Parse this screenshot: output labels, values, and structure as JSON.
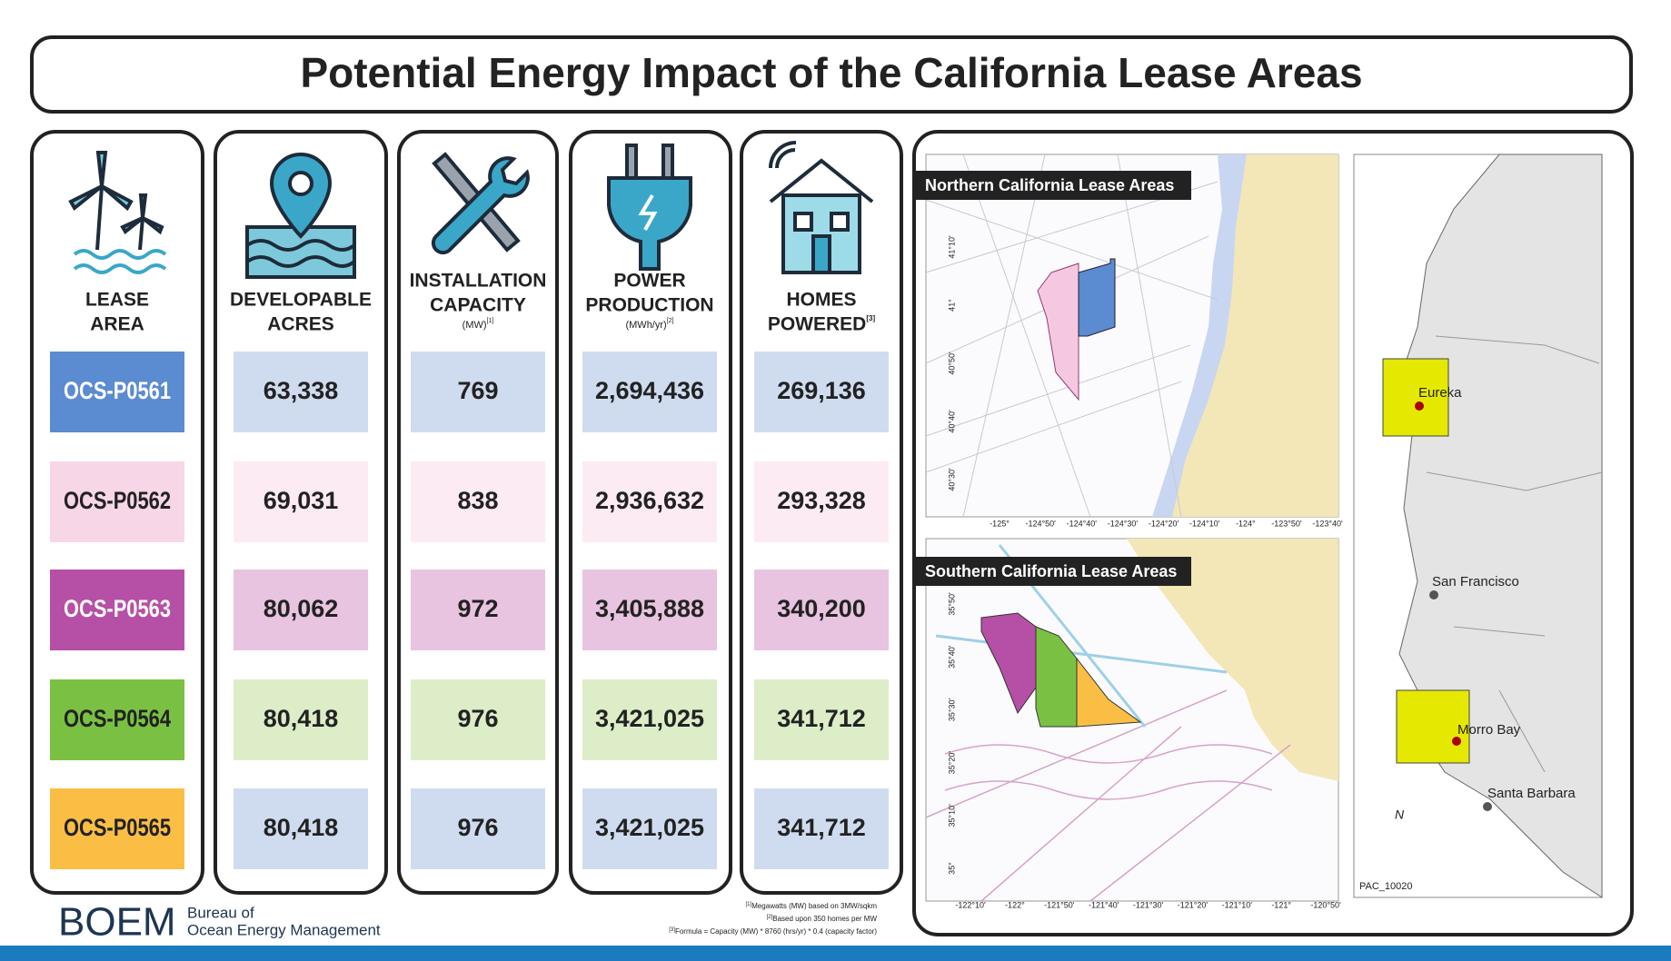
{
  "title": "Potential Energy Impact of the California Lease Areas",
  "table": {
    "headers": [
      {
        "lines": [
          "LEASE",
          "AREA"
        ]
      },
      {
        "lines": [
          "DEVELOPABLE",
          "ACRES"
        ]
      },
      {
        "lines": [
          "INSTALLATION",
          "CAPACITY"
        ],
        "unit": "(MW)",
        "note": "[1]"
      },
      {
        "lines": [
          "POWER",
          "PRODUCTION"
        ],
        "unit": "(MWh/yr)",
        "note": "[2]"
      },
      {
        "lines": [
          "HOMES",
          "POWERED"
        ],
        "note": "[3]"
      }
    ],
    "rows": [
      [
        "OCS-P0561",
        "63,338",
        "769",
        "2,694,436",
        "269,136"
      ],
      [
        "OCS-P0562",
        "69,031",
        "838",
        "2,936,632",
        "293,328"
      ],
      [
        "OCS-P0563",
        "80,062",
        "972",
        "3,405,888",
        "340,200"
      ],
      [
        "OCS-P0564",
        "80,418",
        "976",
        "3,421,025",
        "341,712"
      ],
      [
        "OCS-P0565",
        "80,418",
        "976",
        "3,421,025",
        "341,712"
      ]
    ],
    "row_colors": [
      {
        "lease": "#5b8bd0",
        "lease_text": "#ffffff",
        "cell": "#cfdcf0"
      },
      {
        "lease": "#f7d6e7",
        "lease_text": "#222222",
        "cell": "#fdebf4"
      },
      {
        "lease": "#b64fa6",
        "lease_text": "#ffffff",
        "cell": "#e8c4e1"
      },
      {
        "lease": "#7ac143",
        "lease_text": "#222222",
        "cell": "#dcedc8"
      },
      {
        "lease": "#fbbe45",
        "lease_text": "#222222",
        "cell": "#cfdcf0"
      }
    ]
  },
  "footnotes": [
    {
      "note": "[1]",
      "text": "Megawatts (MW) based on 3MW/sqkm"
    },
    {
      "note": "[2]",
      "text": "Based upon 350 homes per MW"
    },
    {
      "note": "[3]",
      "text": "Formula = Capacity (MW) * 8760 (hrs/yr) * 0.4 (capacity factor)"
    }
  ],
  "logo": {
    "mark": "BOEM",
    "lines": [
      "Bureau of",
      "Ocean Energy Management"
    ]
  },
  "maps": {
    "north": {
      "title": "Northern California Lease Areas",
      "lon_labels": [
        "-125°",
        "-124°50'",
        "-124°40'",
        "-124°30'",
        "-124°20'",
        "-124°10'",
        "-124°",
        "-123°50'",
        "-123°40'"
      ],
      "lat_labels": [
        "41°10'",
        "41°",
        "40°50'",
        "40°40'",
        "40°30'"
      ]
    },
    "south": {
      "title": "Southern California Lease Areas",
      "lon_labels": [
        "-122°10'",
        "-122°",
        "-121°50'",
        "-121°40'",
        "-121°30'",
        "-121°20'",
        "-121°10'",
        "-121°",
        "-120°50'"
      ],
      "lat_labels": [
        "35°50'",
        "35°40'",
        "35°30'",
        "35°20'",
        "35°10'",
        "35°"
      ]
    },
    "overview": {
      "cities": [
        "Eureka",
        "San Francisco",
        "Morro Bay",
        "Santa Barbara"
      ],
      "north": "N",
      "id": "PAC_10020"
    }
  }
}
